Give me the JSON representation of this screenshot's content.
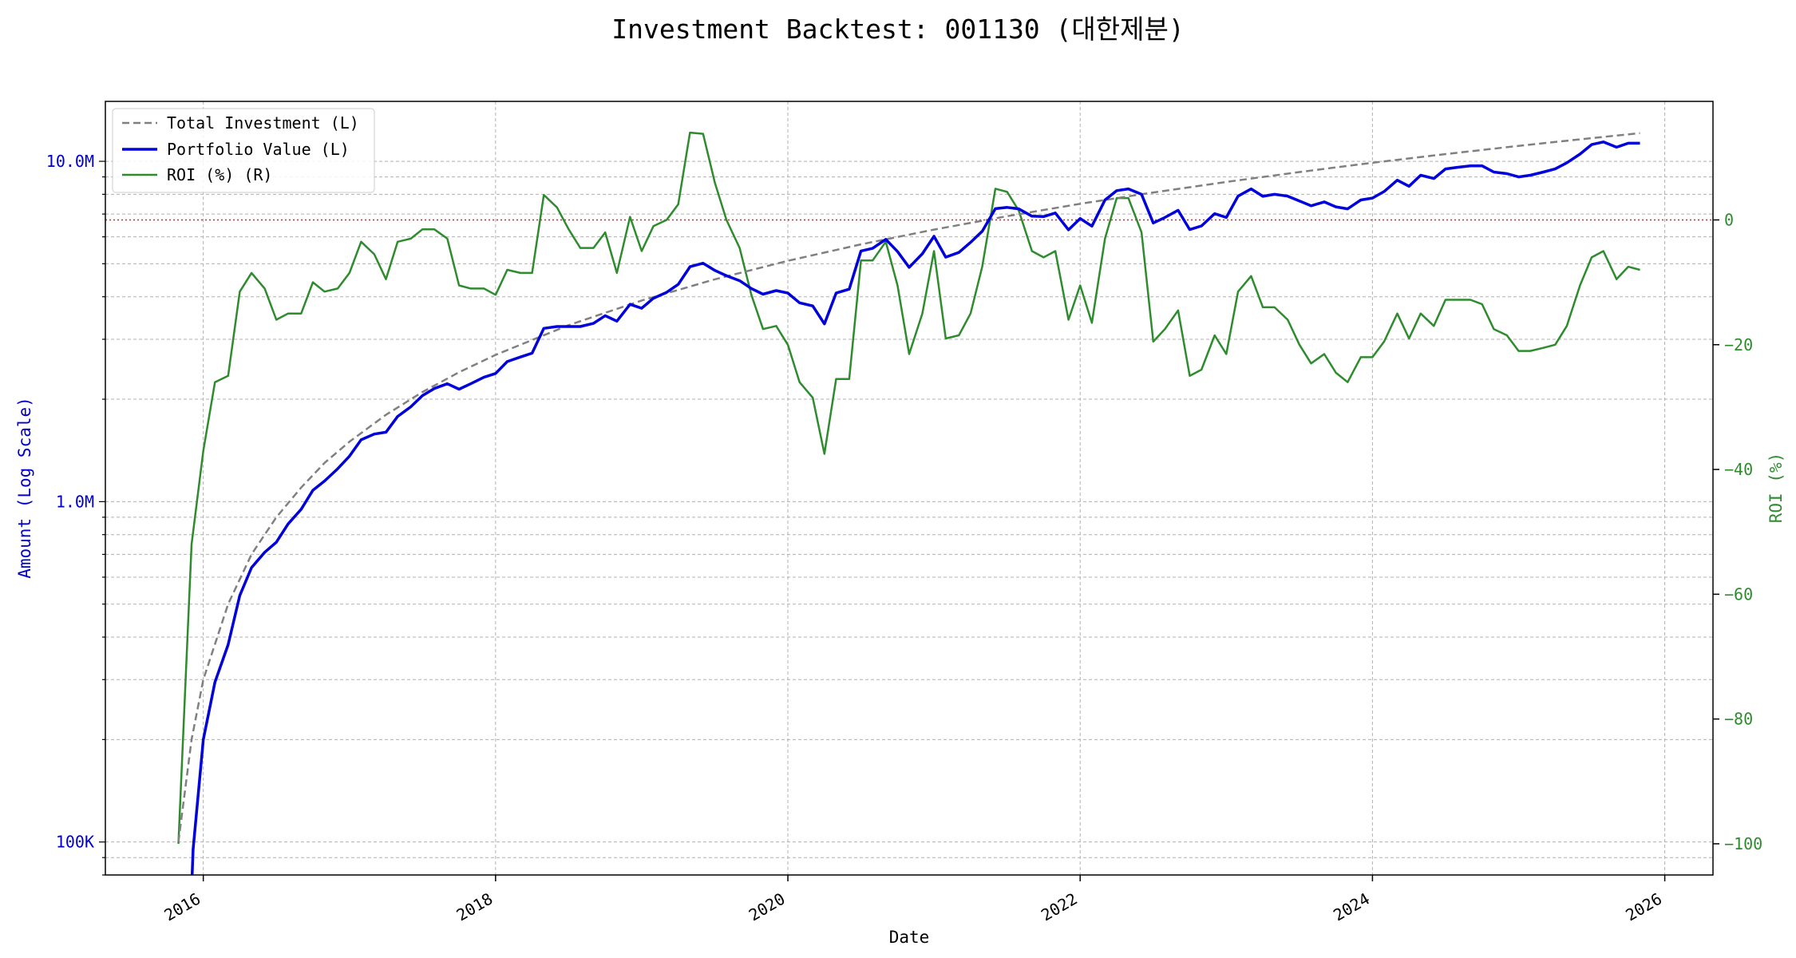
{
  "chart_data": {
    "type": "line",
    "title": "Investment Backtest: 001130 (대한제분)",
    "xlabel": "Date",
    "ylabel_left": "Amount (Log Scale)",
    "ylabel_right": "ROI (%)",
    "left_scale": "log",
    "xlim": [
      2015.33,
      2026.33
    ],
    "ylim_left": [
      80000,
      15000000
    ],
    "ylim_right": [
      -105,
      19
    ],
    "grid": true,
    "legend_position": "top-left",
    "colors": {
      "total_investment": "#808080",
      "portfolio_value": "#0000dd",
      "roi": "#2e8b2e",
      "zero_line": "#d62728",
      "left_axis": "#0000cc",
      "right_axis": "#2e8b2e"
    },
    "x_ticks": [
      {
        "value": 2016,
        "label": "2016"
      },
      {
        "value": 2018,
        "label": "2018"
      },
      {
        "value": 2020,
        "label": "2020"
      },
      {
        "value": 2022,
        "label": "2022"
      },
      {
        "value": 2024,
        "label": "2024"
      },
      {
        "value": 2026,
        "label": "2026"
      }
    ],
    "y_ticks_left": [
      {
        "value": 100000,
        "label": "100K"
      },
      {
        "value": 1000000,
        "label": "1.0M"
      },
      {
        "value": 10000000,
        "label": "10.0M"
      }
    ],
    "y_ticks_right": [
      {
        "value": 0,
        "label": "0"
      },
      {
        "value": -20,
        "label": "−20"
      },
      {
        "value": -40,
        "label": "−40"
      },
      {
        "value": -60,
        "label": "−60"
      },
      {
        "value": -80,
        "label": "−80"
      },
      {
        "value": -100,
        "label": "−100"
      }
    ],
    "series": [
      {
        "name": "Total Investment (L)",
        "axis": "left",
        "style": "dashed",
        "x": [
          2015.83,
          2015.92,
          2016.0,
          2016.17,
          2016.33,
          2016.5,
          2016.67,
          2016.83,
          2017.0,
          2017.25,
          2017.5,
          2017.75,
          2018.0,
          2018.5,
          2019.0,
          2019.5,
          2020.0,
          2020.5,
          2021.0,
          2021.5,
          2022.0,
          2022.5,
          2023.0,
          2023.5,
          2024.0,
          2024.5,
          2025.0,
          2025.5,
          2025.83
        ],
        "y": [
          100000,
          200000,
          300000,
          500000,
          700000,
          900000,
          1100000,
          1300000,
          1500000,
          1800000,
          2100000,
          2400000,
          2700000,
          3300000,
          3900000,
          4500000,
          5100000,
          5700000,
          6300000,
          6900000,
          7500000,
          8100000,
          8700000,
          9300000,
          9900000,
          10500000,
          11100000,
          11700000,
          12100000
        ]
      },
      {
        "name": "Portfolio Value (L)",
        "axis": "left",
        "style": "solid",
        "x": [
          2015.92,
          2015.93,
          2016.0,
          2016.08,
          2016.17,
          2016.25,
          2016.33,
          2016.42,
          2016.5,
          2016.58,
          2016.67,
          2016.75,
          2016.83,
          2016.92,
          2017.0,
          2017.08,
          2017.17,
          2017.25,
          2017.33,
          2017.42,
          2017.5,
          2017.58,
          2017.67,
          2017.75,
          2017.83,
          2017.92,
          2018.0,
          2018.08,
          2018.17,
          2018.25,
          2018.33,
          2018.42,
          2018.5,
          2018.58,
          2018.67,
          2018.75,
          2018.83,
          2018.92,
          2019.0,
          2019.08,
          2019.17,
          2019.25,
          2019.33,
          2019.42,
          2019.5,
          2019.58,
          2019.67,
          2019.75,
          2019.83,
          2019.92,
          2020.0,
          2020.08,
          2020.17,
          2020.25,
          2020.33,
          2020.42,
          2020.5,
          2020.58,
          2020.67,
          2020.75,
          2020.83,
          2020.92,
          2021.0,
          2021.08,
          2021.17,
          2021.25,
          2021.33,
          2021.42,
          2021.5,
          2021.58,
          2021.67,
          2021.75,
          2021.83,
          2021.92,
          2022.0,
          2022.08,
          2022.17,
          2022.25,
          2022.33,
          2022.42,
          2022.5,
          2022.58,
          2022.67,
          2022.75,
          2022.83,
          2022.92,
          2023.0,
          2023.08,
          2023.17,
          2023.25,
          2023.33,
          2023.42,
          2023.5,
          2023.58,
          2023.67,
          2023.75,
          2023.83,
          2023.92,
          2024.0,
          2024.08,
          2024.17,
          2024.25,
          2024.33,
          2024.42,
          2024.5,
          2024.58,
          2024.67,
          2024.75,
          2024.83,
          2024.92,
          2025.0,
          2025.08,
          2025.17,
          2025.25,
          2025.33,
          2025.42,
          2025.5,
          2025.58,
          2025.67,
          2025.75,
          2025.83
        ],
        "y": [
          72000,
          95000,
          200000,
          295000,
          380000,
          530000,
          640000,
          710000,
          760000,
          860000,
          950000,
          1080000,
          1150000,
          1250000,
          1360000,
          1520000,
          1580000,
          1600000,
          1780000,
          1900000,
          2050000,
          2150000,
          2220000,
          2140000,
          2220000,
          2320000,
          2380000,
          2580000,
          2660000,
          2730000,
          3230000,
          3270000,
          3270000,
          3270000,
          3340000,
          3520000,
          3390000,
          3800000,
          3700000,
          3960000,
          4120000,
          4350000,
          4900000,
          5020000,
          4780000,
          4610000,
          4460000,
          4230000,
          4070000,
          4170000,
          4100000,
          3840000,
          3760000,
          3330000,
          4100000,
          4210000,
          5450000,
          5550000,
          5900000,
          5430000,
          4880000,
          5350000,
          6020000,
          5230000,
          5400000,
          5780000,
          6230000,
          7260000,
          7320000,
          7250000,
          6900000,
          6880000,
          7050000,
          6290000,
          6790000,
          6450000,
          7700000,
          8200000,
          8300000,
          8000000,
          6590000,
          6840000,
          7180000,
          6300000,
          6460000,
          7020000,
          6840000,
          7900000,
          8300000,
          7890000,
          8000000,
          7900000,
          7650000,
          7400000,
          7600000,
          7350000,
          7250000,
          7700000,
          7800000,
          8150000,
          8800000,
          8450000,
          9100000,
          8900000,
          9500000,
          9600000,
          9700000,
          9700000,
          9300000,
          9200000,
          9000000,
          9100000,
          9300000,
          9500000,
          9900000,
          10500000,
          11200000,
          11400000,
          11000000,
          11300000,
          11300000
        ]
      },
      {
        "name": "ROI (%) (R)",
        "axis": "right",
        "style": "solid",
        "x": [
          2015.83,
          2015.92,
          2016.0,
          2016.08,
          2016.17,
          2016.25,
          2016.33,
          2016.42,
          2016.5,
          2016.58,
          2016.67,
          2016.75,
          2016.83,
          2016.92,
          2017.0,
          2017.08,
          2017.17,
          2017.25,
          2017.33,
          2017.42,
          2017.5,
          2017.58,
          2017.67,
          2017.75,
          2017.83,
          2017.92,
          2018.0,
          2018.08,
          2018.17,
          2018.25,
          2018.33,
          2018.42,
          2018.5,
          2018.58,
          2018.67,
          2018.75,
          2018.83,
          2018.92,
          2019.0,
          2019.08,
          2019.17,
          2019.25,
          2019.33,
          2019.42,
          2019.5,
          2019.58,
          2019.67,
          2019.75,
          2019.83,
          2019.92,
          2020.0,
          2020.08,
          2020.17,
          2020.25,
          2020.33,
          2020.42,
          2020.5,
          2020.58,
          2020.67,
          2020.75,
          2020.83,
          2020.92,
          2021.0,
          2021.08,
          2021.17,
          2021.25,
          2021.33,
          2021.42,
          2021.5,
          2021.58,
          2021.67,
          2021.75,
          2021.83,
          2021.92,
          2022.0,
          2022.08,
          2022.17,
          2022.25,
          2022.33,
          2022.42,
          2022.5,
          2022.58,
          2022.67,
          2022.75,
          2022.83,
          2022.92,
          2023.0,
          2023.08,
          2023.17,
          2023.25,
          2023.33,
          2023.42,
          2023.5,
          2023.58,
          2023.67,
          2023.75,
          2023.83,
          2023.92,
          2024.0,
          2024.08,
          2024.17,
          2024.25,
          2024.33,
          2024.42,
          2024.5,
          2024.58,
          2024.67,
          2024.75,
          2024.83,
          2024.92,
          2025.0,
          2025.08,
          2025.17,
          2025.25,
          2025.33,
          2025.42,
          2025.5,
          2025.58,
          2025.67,
          2025.75,
          2025.83
        ],
        "y": [
          -100,
          -52,
          -37,
          -26,
          -25,
          -11.5,
          -8.5,
          -11,
          -16,
          -15,
          -15,
          -10,
          -11.5,
          -11,
          -8.5,
          -3.5,
          -5.5,
          -9.5,
          -3.5,
          -3,
          -1.5,
          -1.5,
          -3,
          -10.5,
          -11,
          -11,
          -12,
          -8,
          -8.5,
          -8.5,
          4,
          2,
          -1.5,
          -4.5,
          -4.5,
          -2,
          -8.5,
          0.5,
          -5,
          -1,
          0,
          2.5,
          14,
          13.8,
          6,
          0,
          -4.5,
          -12,
          -17.5,
          -17,
          -20,
          -26,
          -28.5,
          -37.5,
          -25.5,
          -25.5,
          -6.5,
          -6.5,
          -3.5,
          -10.5,
          -21.5,
          -15,
          -5,
          -19,
          -18.5,
          -15,
          -7.5,
          5,
          4.5,
          1.5,
          -5,
          -6,
          -5,
          -16,
          -10.5,
          -16.5,
          -3,
          3.5,
          3.5,
          -2,
          -19.5,
          -17.5,
          -14.5,
          -25,
          -24,
          -18.5,
          -21.5,
          -11.5,
          -9,
          -14,
          -14,
          -16,
          -20,
          -23,
          -21.5,
          -24.5,
          -26,
          -22,
          -22,
          -19.5,
          -15,
          -19,
          -15,
          -17,
          -12.8,
          -12.8,
          -12.8,
          -13.5,
          -17.5,
          -18.5,
          -21,
          -21,
          -20.5,
          -20,
          -17,
          -10.5,
          -6,
          -5,
          -9.5,
          -7.5,
          -8
        ]
      }
    ],
    "zero_line": {
      "value": 0,
      "axis": "right",
      "style": "dotted"
    }
  }
}
